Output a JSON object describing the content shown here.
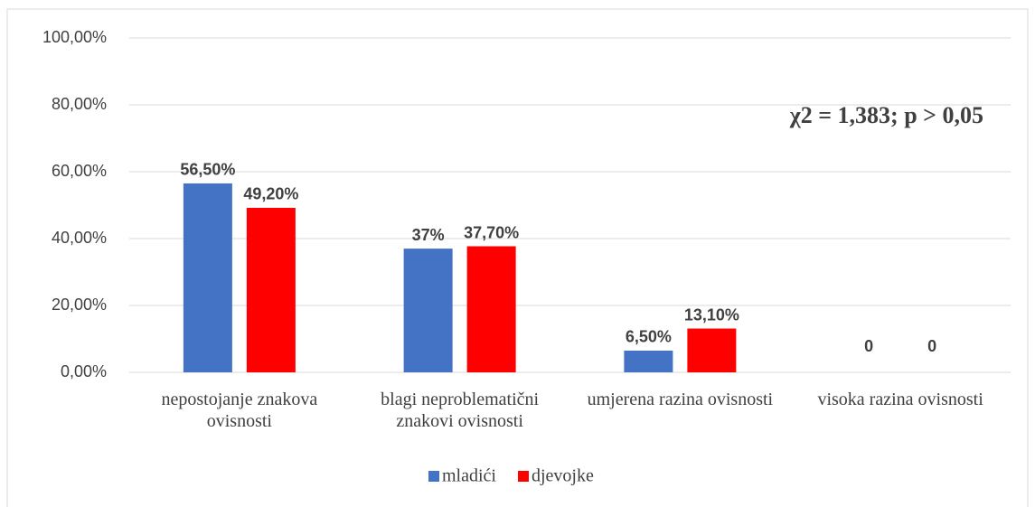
{
  "chart_data": {
    "type": "bar",
    "annotation": "χ2 = 1,383; p > 0,05",
    "categories": [
      "nepostojanje znakova ovisnosti",
      "blagi neproblematični znakovi ovisnosti",
      "umjerena razina ovisnosti",
      "visoka razina ovisnosti"
    ],
    "series": [
      {
        "name": "mladići",
        "color": "#4472c4",
        "values": [
          56.5,
          37,
          6.5,
          0
        ],
        "value_labels": [
          "56,50%",
          "37%",
          "6,50%",
          "0"
        ]
      },
      {
        "name": "djevojke",
        "color": "#ff0000",
        "values": [
          49.2,
          37.7,
          13.1,
          0
        ],
        "value_labels": [
          "49,20%",
          "37,70%",
          "13,10%",
          "0"
        ]
      }
    ],
    "ylim": [
      0,
      100
    ],
    "yticks": [
      {
        "value": 0,
        "label": "0,00%"
      },
      {
        "value": 20,
        "label": "20,00%"
      },
      {
        "value": 40,
        "label": "40,00%"
      },
      {
        "value": 60,
        "label": "60,00%"
      },
      {
        "value": 80,
        "label": "80,00%"
      },
      {
        "value": 100,
        "label": "100,00%"
      }
    ],
    "grid": true,
    "legend": "bottom"
  }
}
